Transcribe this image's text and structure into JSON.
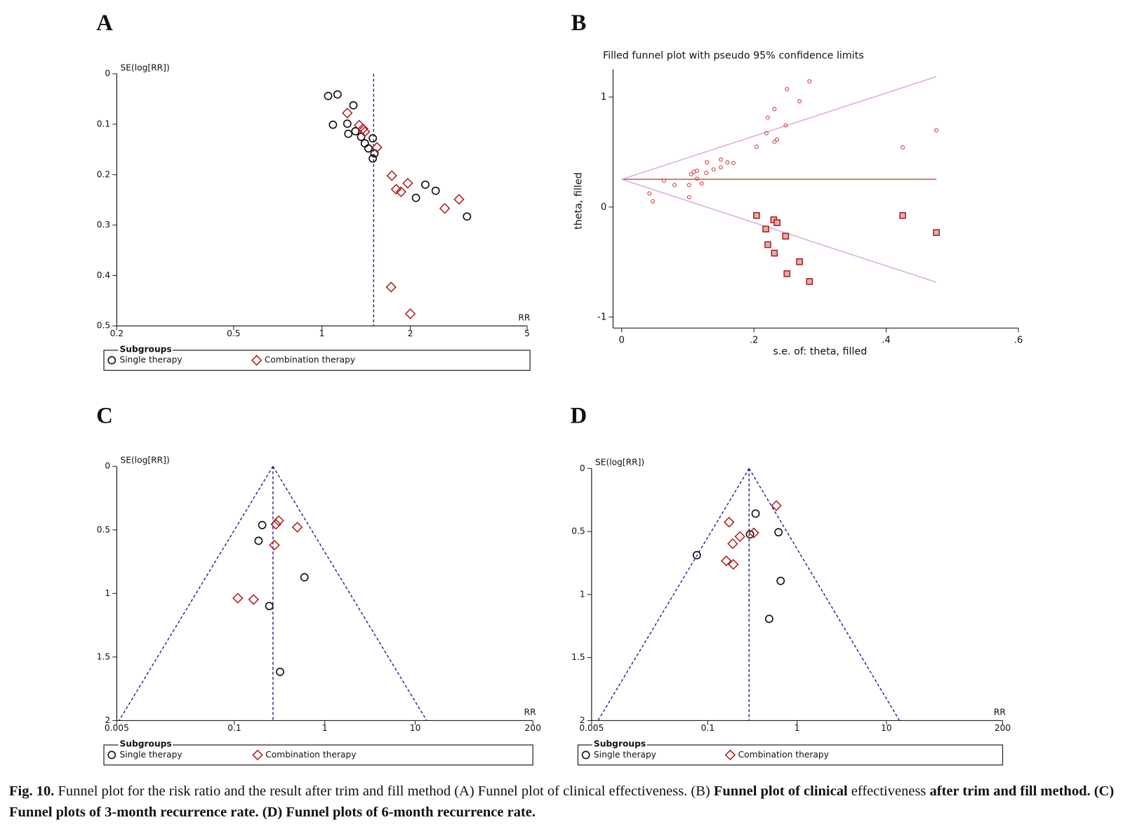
{
  "chart_data": [
    {
      "type": "scatter",
      "panel": "A",
      "ylabel": "SE(log[RR])",
      "xlabel": "RR",
      "xlog": true,
      "y_inverted": true,
      "xlim": [
        0.2,
        5
      ],
      "xticks": [
        0.2,
        0.5,
        1,
        2,
        5
      ],
      "ylim": [
        0,
        0.5
      ],
      "yticks": [
        0,
        0.1,
        0.2,
        0.3,
        0.4,
        0.5
      ],
      "legend_title": "Subgroups",
      "series": [
        {
          "name": "Single therapy",
          "color": "#111111",
          "marker": "circle",
          "x": [
            1.05,
            1.13,
            1.09,
            1.28,
            1.22,
            1.3,
            1.23,
            1.36,
            1.4,
            1.44,
            1.49,
            1.51,
            1.49,
            2.25,
            2.09,
            2.44,
            3.12
          ],
          "values": [
            0.044,
            0.041,
            0.101,
            0.0625,
            0.099,
            0.114,
            0.119,
            0.125,
            0.138,
            0.148,
            0.128,
            0.158,
            0.168,
            0.22,
            0.246,
            0.232,
            0.283
          ]
        },
        {
          "name": "Combination therapy",
          "color": "#b01c1c",
          "marker": "diamond",
          "x": [
            1.22,
            1.34,
            1.38,
            1.4,
            1.54,
            1.73,
            1.96,
            1.79,
            1.86,
            2.62,
            2.93,
            1.72,
            2.0
          ],
          "values": [
            0.078,
            0.102,
            0.109,
            0.115,
            0.146,
            0.202,
            0.217,
            0.229,
            0.234,
            0.267,
            0.249,
            0.423,
            0.476
          ]
        }
      ],
      "lines": [
        {
          "color": "#22229a",
          "dashed": true,
          "x": [
            1.5,
            1.5
          ],
          "values": [
            0,
            0.5
          ]
        }
      ]
    },
    {
      "type": "scatter",
      "panel": "B",
      "title": "Filled funnel plot with pseudo 95% confidence limits",
      "ylabel": "theta, filled",
      "xlabel": "s.e. of: theta, filled",
      "xlim": [
        -0.013,
        0.6
      ],
      "xticks": [
        0,
        {
          "value": 0.2,
          "label": ".2"
        },
        {
          "value": 0.4,
          "label": ".4"
        },
        {
          "value": 0.6,
          "label": ".6"
        }
      ],
      "ylim": [
        -1.1,
        1.25
      ],
      "yticks": [
        1,
        0,
        -1
      ],
      "series": [
        {
          "color": "#cc3333",
          "marker": "smallcircle",
          "x": [
            0.042,
            0.047,
            0.064,
            0.08,
            0.102,
            0.102,
            0.105,
            0.109,
            0.114,
            0.114,
            0.121,
            0.128,
            0.129,
            0.139,
            0.15,
            0.15,
            0.16,
            0.169,
            0.204,
            0.219,
            0.221,
            0.231,
            0.231,
            0.235,
            0.248,
            0.25,
            0.269,
            0.284,
            0.425,
            0.476
          ],
          "values": [
            0.123,
            0.052,
            0.239,
            0.2,
            0.2,
            0.09,
            0.297,
            0.32,
            0.33,
            0.258,
            0.213,
            0.31,
            0.406,
            0.342,
            0.361,
            0.432,
            0.406,
            0.4,
            0.548,
            0.671,
            0.813,
            0.89,
            0.594,
            0.613,
            0.742,
            1.071,
            0.961,
            1.142,
            0.542,
            0.697
          ]
        },
        {
          "color": "#a01818",
          "marker": "square",
          "x": [
            0.204,
            0.218,
            0.221,
            0.23,
            0.235,
            0.231,
            0.248,
            0.269,
            0.25,
            0.284,
            0.425,
            0.476
          ],
          "values": [
            -0.077,
            -0.2,
            -0.342,
            -0.116,
            -0.142,
            -0.419,
            -0.265,
            -0.497,
            -0.606,
            -0.677,
            -0.077,
            -0.232
          ]
        }
      ],
      "lines": [
        {
          "color": "#d84a4a",
          "dashed": false,
          "x": [
            0,
            0.476
          ],
          "values": [
            0.252,
            0.252
          ]
        },
        {
          "color": "#d9a6e6",
          "dashed": false,
          "x": [
            0,
            0.476
          ],
          "values": [
            0.252,
            1.185
          ]
        },
        {
          "color": "#d9a6e6",
          "dashed": false,
          "x": [
            0,
            0.476
          ],
          "values": [
            0.252,
            -0.684
          ]
        }
      ]
    },
    {
      "type": "scatter",
      "panel": "C",
      "ylabel": "SE(log[RR])",
      "xlabel": "RR",
      "xlog": true,
      "y_inverted": true,
      "xlim": [
        0.005,
        200
      ],
      "xticks": [
        0.005,
        0.1,
        1,
        10,
        200
      ],
      "ylim": [
        0,
        2
      ],
      "yticks": [
        0,
        0.5,
        1,
        1.5,
        2
      ],
      "legend_title": "Subgroups",
      "series": [
        {
          "name": "Single therapy",
          "color": "#111111",
          "marker": "circle",
          "x": [
            0.203,
            0.185,
            0.595,
            0.243,
            0.32
          ],
          "values": [
            0.462,
            0.586,
            0.873,
            1.099,
            1.617
          ]
        },
        {
          "name": "Combination therapy",
          "color": "#b01c1c",
          "marker": "diamond",
          "x": [
            0.309,
            0.288,
            0.496,
            0.277,
            0.109,
            0.163
          ],
          "values": [
            0.428,
            0.456,
            0.479,
            0.62,
            1.037,
            1.048
          ]
        }
      ],
      "lines": [
        {
          "color": "#22229a",
          "dashed": true,
          "x": [
            0.267,
            0.0053
          ],
          "values": [
            0,
            2
          ]
        },
        {
          "color": "#22229a",
          "dashed": true,
          "x": [
            0.267,
            13.4
          ],
          "values": [
            0,
            2
          ]
        },
        {
          "color": "#22229a",
          "dashed": true,
          "x": [
            0.267,
            0.267
          ],
          "values": [
            0,
            2
          ]
        }
      ]
    },
    {
      "type": "scatter",
      "panel": "D",
      "ylabel": "SE(log[RR])",
      "xlabel": "RR",
      "xlog": true,
      "y_inverted": true,
      "xlim": [
        0.005,
        200
      ],
      "xticks": [
        0.005,
        0.1,
        1,
        10,
        200
      ],
      "ylim": [
        0,
        2
      ],
      "yticks": [
        0,
        0.5,
        1,
        1.5,
        2
      ],
      "legend_title": "Subgroups",
      "series": [
        {
          "name": "Single therapy",
          "color": "#111111",
          "marker": "circle",
          "x": [
            0.343,
            0.619,
            0.297,
            0.0754,
            0.654,
            0.487
          ],
          "values": [
            0.358,
            0.506,
            0.523,
            0.688,
            0.892,
            1.193
          ]
        },
        {
          "name": "Combination therapy",
          "color": "#b01c1c",
          "marker": "diamond",
          "x": [
            0.586,
            0.173,
            0.328,
            0.229,
            0.19,
            0.161,
            0.193
          ],
          "values": [
            0.295,
            0.426,
            0.511,
            0.54,
            0.597,
            0.733,
            0.761
          ]
        }
      ],
      "lines": [
        {
          "color": "#22229a",
          "dashed": true,
          "x": [
            0.29,
            0.0059
          ],
          "values": [
            0,
            2
          ]
        },
        {
          "color": "#22229a",
          "dashed": true,
          "x": [
            0.29,
            14.0
          ],
          "values": [
            0,
            2
          ]
        },
        {
          "color": "#22229a",
          "dashed": true,
          "x": [
            0.29,
            0.29
          ],
          "values": [
            0,
            2
          ]
        }
      ]
    }
  ],
  "caption": {
    "segments": [
      {
        "text": "Fig. 10.",
        "bold": true
      },
      {
        "text": " Funnel plot for the risk ratio and the result after trim and fill method (A) Funnel plot of clinical effectiveness. (B) ",
        "bold": false
      },
      {
        "text": "Funnel plot of clinical",
        "bold": true
      },
      {
        "text": " effectiveness ",
        "bold": false
      },
      {
        "text": "after trim and fill method. (C) Funnel plots of 3-month recurrence rate. (D) Funnel plots of 6-month recurrence rate.",
        "bold": true
      }
    ]
  }
}
